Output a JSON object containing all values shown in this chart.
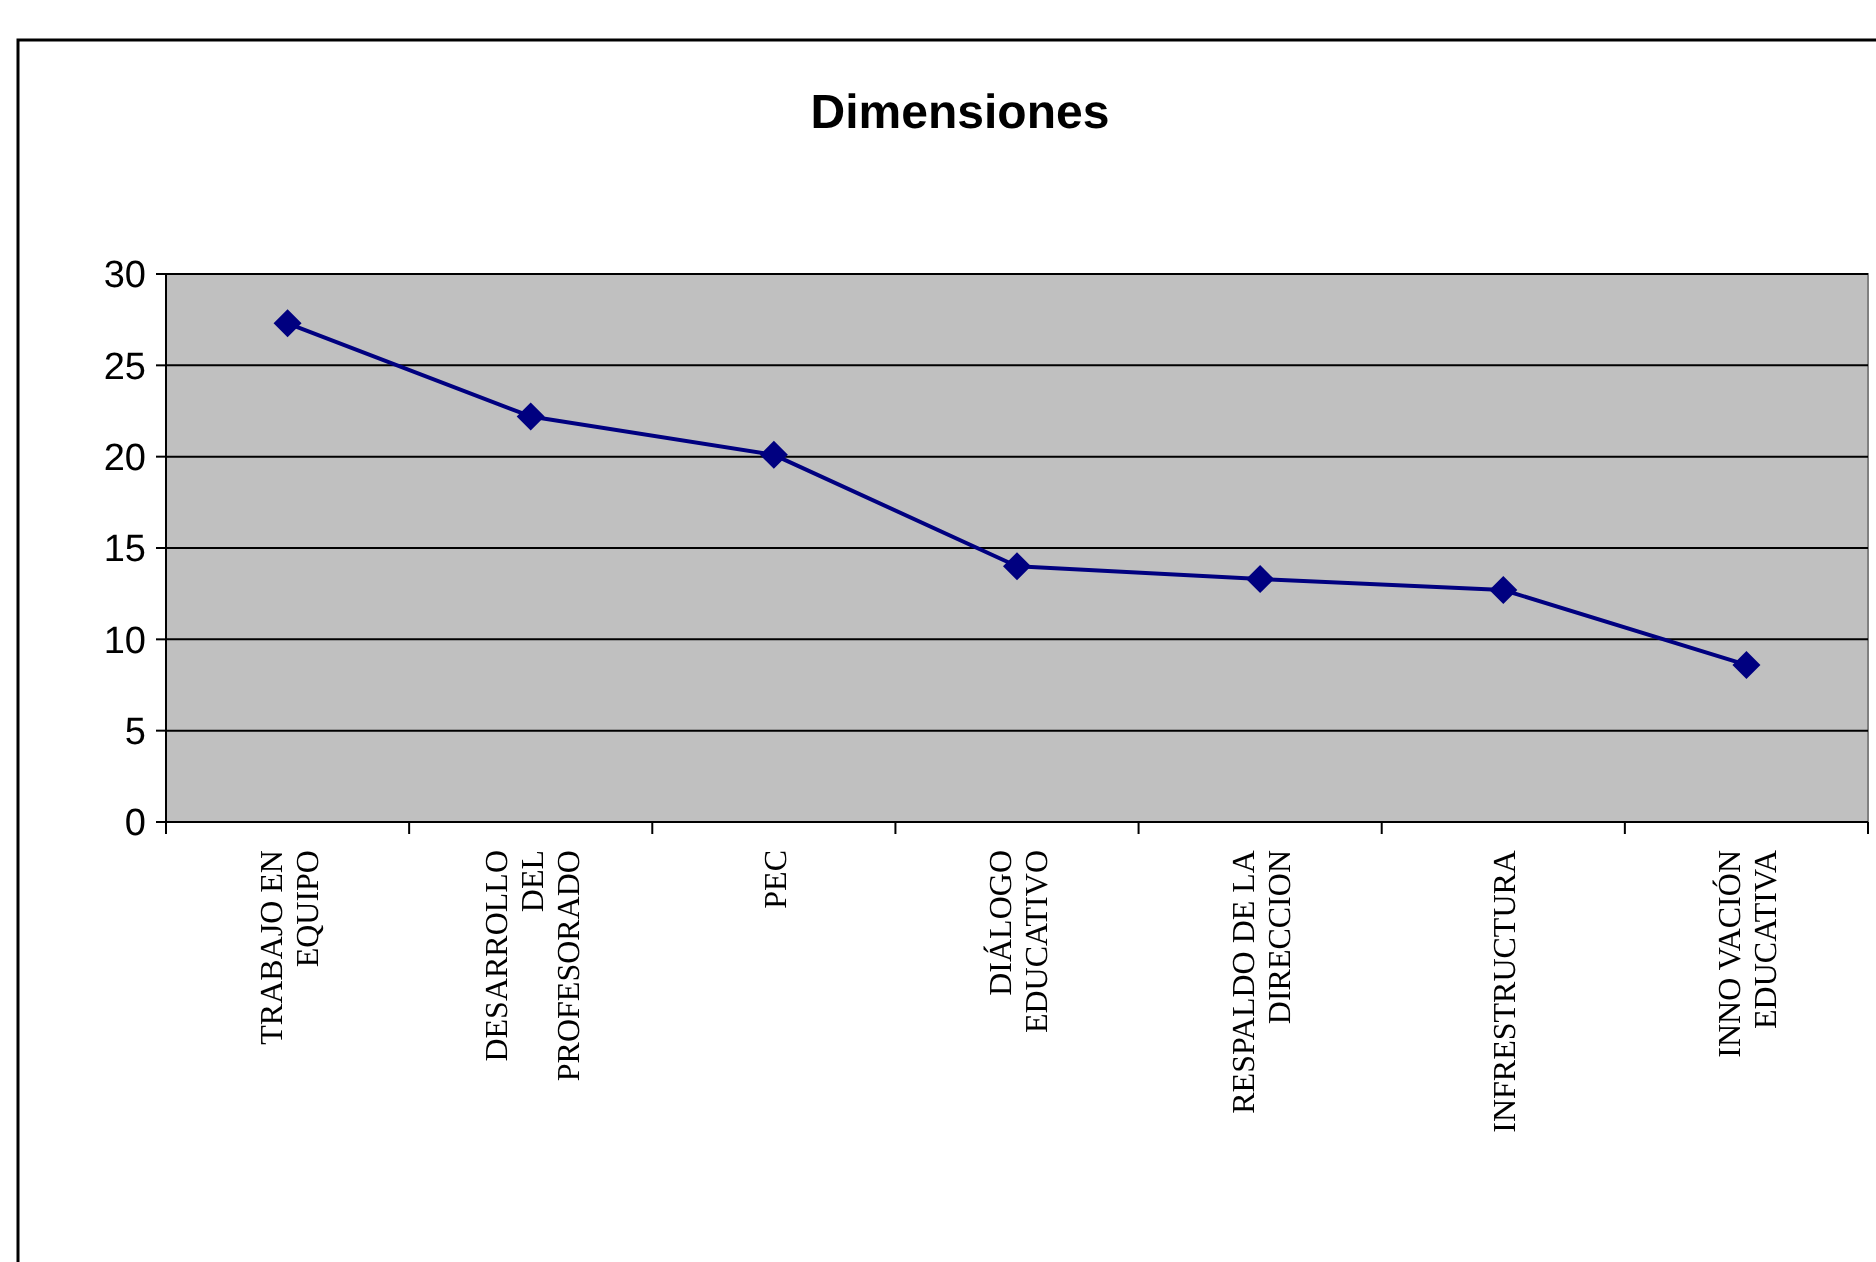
{
  "chart_data": {
    "type": "line",
    "title": "Dimensiones",
    "categories": [
      "TRABAJO EN EQUIPO",
      "DESARROLLO DEL PROFESORADO",
      "PEC",
      "DIÁLOGO EDUCATIVO",
      "RESPALDO DE LA DIRECCION",
      "INFRESTRUCTURA",
      "INNO VACIÓN EDUCATIVA"
    ],
    "series": [
      {
        "color": "#000080",
        "values": [
          27.3,
          22.2,
          20.1,
          14.0,
          13.3,
          12.7,
          8.6
        ]
      }
    ],
    "ylim": [
      0,
      30
    ],
    "yticks": [
      0,
      5,
      10,
      15,
      20,
      25,
      30
    ],
    "grid": "y",
    "marker": "diamond",
    "line_style": "solid"
  }
}
